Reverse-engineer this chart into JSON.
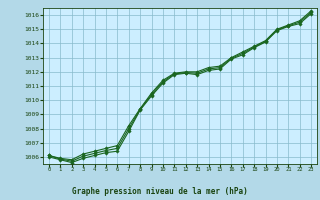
{
  "title": "Graphe pression niveau de la mer (hPa)",
  "bg_color": "#b3d9e8",
  "plot_bg_color": "#cceeff",
  "line_color": "#1a6620",
  "marker_color": "#1a6620",
  "grid_color": "#88bbcc",
  "text_color": "#1a4410",
  "xlim": [
    -0.5,
    23.5
  ],
  "ylim": [
    1005.5,
    1016.5
  ],
  "yticks": [
    1006,
    1007,
    1008,
    1009,
    1010,
    1011,
    1012,
    1013,
    1014,
    1015,
    1016
  ],
  "xticks": [
    0,
    1,
    2,
    3,
    4,
    5,
    6,
    7,
    8,
    9,
    10,
    11,
    12,
    13,
    14,
    15,
    16,
    17,
    18,
    19,
    20,
    21,
    22,
    23
  ],
  "series1": {
    "x": [
      0,
      1,
      2,
      3,
      4,
      5,
      6,
      7,
      8,
      9,
      10,
      11,
      12,
      13,
      14,
      15,
      16,
      17,
      18,
      19,
      20,
      21,
      22,
      23
    ],
    "y": [
      1006.0,
      1005.8,
      1005.6,
      1005.9,
      1006.1,
      1006.3,
      1006.4,
      1007.8,
      1009.3,
      1010.3,
      1011.2,
      1011.8,
      1011.9,
      1011.8,
      1012.1,
      1012.2,
      1012.9,
      1013.2,
      1013.7,
      1014.1,
      1014.9,
      1015.2,
      1015.4,
      1016.1
    ]
  },
  "series2": {
    "x": [
      0,
      1,
      2,
      3,
      4,
      5,
      6,
      7,
      8,
      9,
      10,
      11,
      12,
      13,
      14,
      15,
      16,
      17,
      18,
      19,
      20,
      21,
      22,
      23
    ],
    "y": [
      1006.1,
      1005.9,
      1005.8,
      1006.2,
      1006.4,
      1006.6,
      1006.8,
      1008.2,
      1009.4,
      1010.5,
      1011.4,
      1011.9,
      1012.0,
      1012.0,
      1012.3,
      1012.4,
      1013.0,
      1013.4,
      1013.8,
      1014.2,
      1015.0,
      1015.3,
      1015.6,
      1016.3
    ]
  },
  "series3": {
    "x": [
      0,
      1,
      2,
      3,
      4,
      5,
      6,
      7,
      8,
      9,
      10,
      11,
      12,
      13,
      14,
      15,
      16,
      17,
      18,
      19,
      20,
      21,
      22,
      23
    ],
    "y": [
      1006.1,
      1005.85,
      1005.7,
      1006.05,
      1006.25,
      1006.45,
      1006.6,
      1008.0,
      1009.35,
      1010.4,
      1011.3,
      1011.85,
      1011.95,
      1011.9,
      1012.2,
      1012.3,
      1012.95,
      1013.3,
      1013.75,
      1014.15,
      1014.95,
      1015.25,
      1015.5,
      1016.2
    ]
  }
}
